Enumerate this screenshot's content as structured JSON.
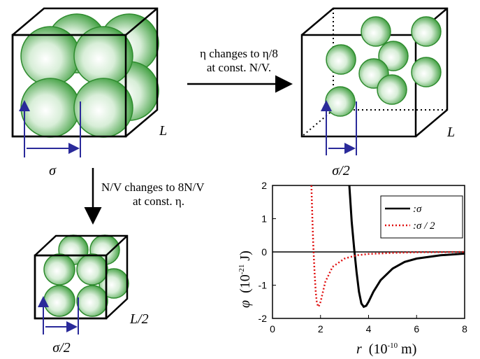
{
  "top_left": {
    "edge": "L",
    "diameter": "σ"
  },
  "top_right": {
    "edge": "L",
    "diameter": "σ/2"
  },
  "bottom_left": {
    "edge": "L/2",
    "diameter": "σ/2"
  },
  "arrow_right": {
    "lines": [
      "η changes to η/8",
      "at const. N/V."
    ]
  },
  "arrow_down": {
    "lines": [
      "N/V changes to 8N/V",
      "at const. η."
    ]
  },
  "chart_data": {
    "type": "line",
    "xlabel": [
      "r",
      "(10",
      "-10",
      "m)"
    ],
    "ylabel": [
      "φ",
      "(10",
      "-21",
      "J)"
    ],
    "xlim": [
      0,
      8
    ],
    "ylim": [
      -2,
      2
    ],
    "xticks": [
      0,
      2,
      4,
      6,
      8
    ],
    "yticks": [
      -2,
      -1,
      0,
      1,
      2
    ],
    "legend": "upper right",
    "series": [
      {
        "name": ":σ",
        "color": "#000000",
        "style": "solid",
        "x": [
          3.2,
          3.3,
          3.4,
          3.5,
          3.6,
          3.7,
          3.8,
          3.9,
          4.0,
          4.2,
          4.5,
          5.0,
          5.5,
          6.0,
          7.0,
          8.0
        ],
        "values": [
          2,
          0.9,
          0.1,
          -0.6,
          -1.2,
          -1.55,
          -1.65,
          -1.62,
          -1.5,
          -1.2,
          -0.85,
          -0.5,
          -0.3,
          -0.2,
          -0.1,
          -0.05
        ]
      },
      {
        "name": ":σ / 2",
        "color": "#e01010",
        "style": "dotted",
        "x": [
          1.62,
          1.66,
          1.7,
          1.75,
          1.8,
          1.85,
          1.92,
          2.0,
          2.2,
          2.5,
          3.0,
          3.5,
          4.0,
          5.0,
          6.0,
          8.0
        ],
        "values": [
          2,
          1.0,
          0.2,
          -0.6,
          -1.2,
          -1.55,
          -1.65,
          -1.5,
          -0.9,
          -0.45,
          -0.2,
          -0.1,
          -0.06,
          -0.03,
          -0.01,
          0
        ]
      }
    ]
  }
}
